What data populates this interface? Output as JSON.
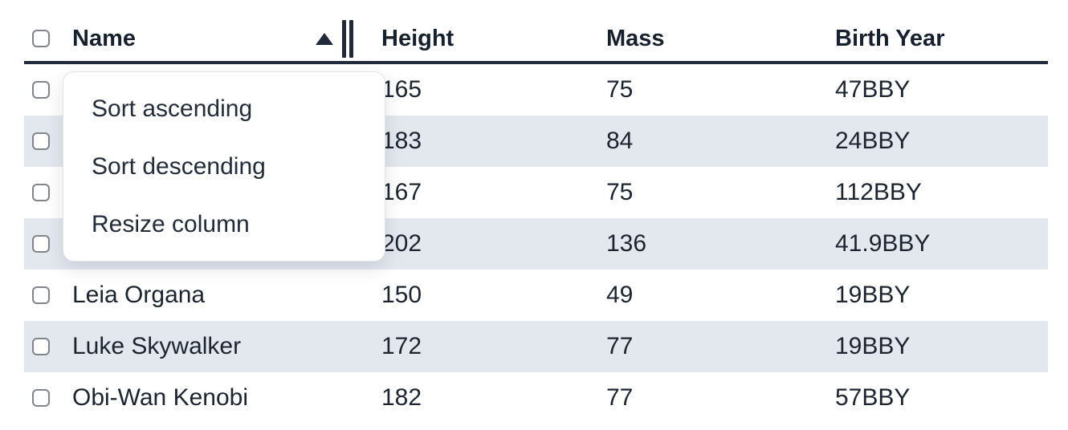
{
  "header": {
    "columns": {
      "name": "Name",
      "height": "Height",
      "mass": "Mass",
      "birth_year": "Birth Year"
    },
    "sort": {
      "column": "Name",
      "direction": "ascending"
    }
  },
  "rows": [
    {
      "name": "",
      "height": "165",
      "mass": "75",
      "birth_year": "47BBY"
    },
    {
      "name": "",
      "height": "183",
      "mass": "84",
      "birth_year": "24BBY"
    },
    {
      "name": "",
      "height": "167",
      "mass": "75",
      "birth_year": "112BBY"
    },
    {
      "name": "",
      "height": "202",
      "mass": "136",
      "birth_year": "41.9BBY"
    },
    {
      "name": "Leia Organa",
      "height": "150",
      "mass": "49",
      "birth_year": "19BBY"
    },
    {
      "name": "Luke Skywalker",
      "height": "172",
      "mass": "77",
      "birth_year": "19BBY"
    },
    {
      "name": "Obi-Wan Kenobi",
      "height": "182",
      "mass": "77",
      "birth_year": "57BBY"
    }
  ],
  "context_menu": {
    "items": [
      {
        "label": "Sort ascending"
      },
      {
        "label": "Sort descending"
      },
      {
        "label": "Resize column"
      }
    ]
  },
  "colors": {
    "accent": "#202a3a",
    "stripe": "#e3e8ef",
    "body_text": "#1b2430",
    "header_text": "#17202e",
    "checkbox_border": "#80868f",
    "menu_border": "#e4e4e8"
  }
}
